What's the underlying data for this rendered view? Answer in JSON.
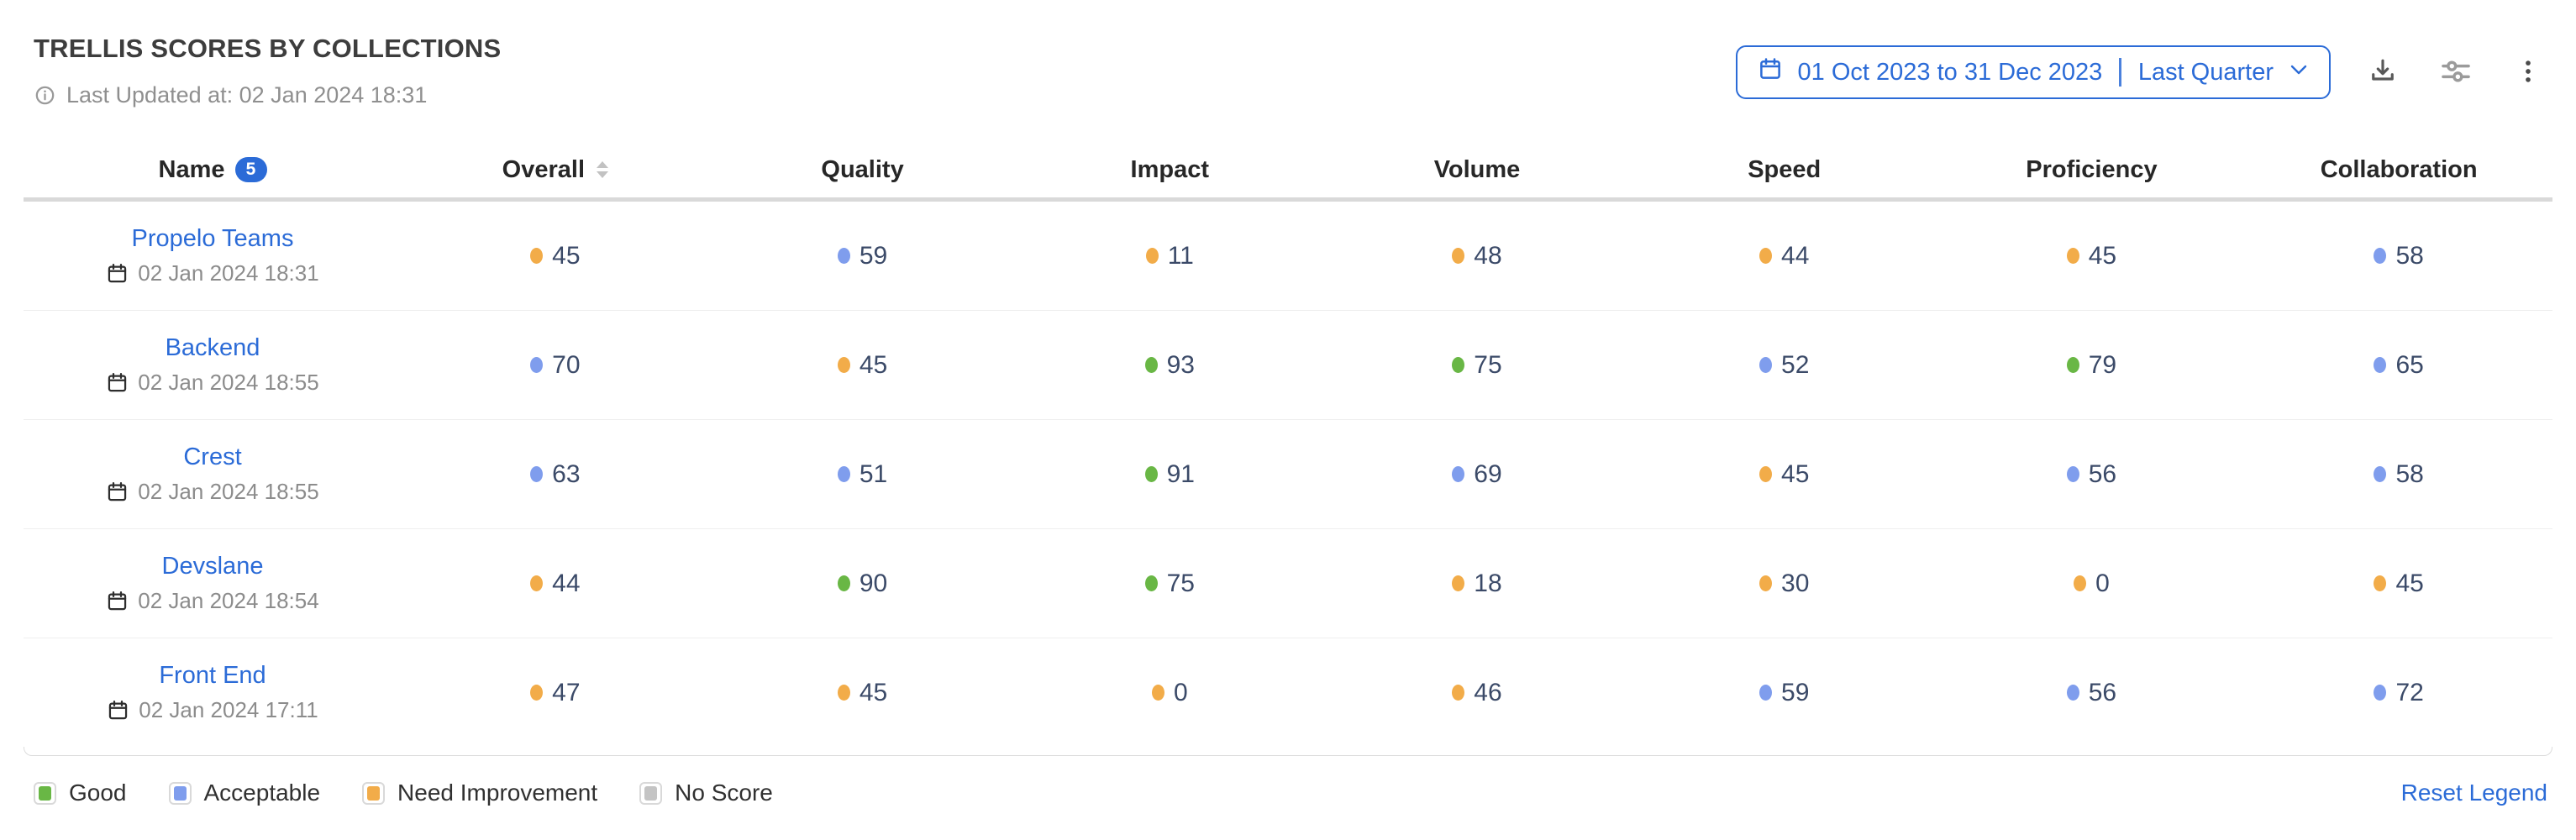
{
  "header": {
    "title": "TRELLIS SCORES BY COLLECTIONS",
    "last_updated": "Last Updated at: 02 Jan 2024 18:31",
    "date_picker": {
      "range": "01 Oct 2023 to 31 Dec 2023",
      "preset": "Last Quarter"
    }
  },
  "table": {
    "columns": [
      {
        "key": "name",
        "label": "Name",
        "badge": "5"
      },
      {
        "key": "overall",
        "label": "Overall",
        "sortable": true
      },
      {
        "key": "quality",
        "label": "Quality"
      },
      {
        "key": "impact",
        "label": "Impact"
      },
      {
        "key": "volume",
        "label": "Volume"
      },
      {
        "key": "speed",
        "label": "Speed"
      },
      {
        "key": "proficiency",
        "label": "Proficiency"
      },
      {
        "key": "collaboration",
        "label": "Collaboration"
      }
    ],
    "rows": [
      {
        "name": "Propelo Teams",
        "updated": "02 Jan 2024 18:31",
        "scores": [
          {
            "value": 45,
            "status": "need_improvement"
          },
          {
            "value": 59,
            "status": "acceptable"
          },
          {
            "value": 11,
            "status": "need_improvement"
          },
          {
            "value": 48,
            "status": "need_improvement"
          },
          {
            "value": 44,
            "status": "need_improvement"
          },
          {
            "value": 45,
            "status": "need_improvement"
          },
          {
            "value": 58,
            "status": "acceptable"
          }
        ]
      },
      {
        "name": "Backend",
        "updated": "02 Jan 2024 18:55",
        "scores": [
          {
            "value": 70,
            "status": "acceptable"
          },
          {
            "value": 45,
            "status": "need_improvement"
          },
          {
            "value": 93,
            "status": "good"
          },
          {
            "value": 75,
            "status": "good"
          },
          {
            "value": 52,
            "status": "acceptable"
          },
          {
            "value": 79,
            "status": "good"
          },
          {
            "value": 65,
            "status": "acceptable"
          }
        ]
      },
      {
        "name": "Crest",
        "updated": "02 Jan 2024 18:55",
        "scores": [
          {
            "value": 63,
            "status": "acceptable"
          },
          {
            "value": 51,
            "status": "acceptable"
          },
          {
            "value": 91,
            "status": "good"
          },
          {
            "value": 69,
            "status": "acceptable"
          },
          {
            "value": 45,
            "status": "need_improvement"
          },
          {
            "value": 56,
            "status": "acceptable"
          },
          {
            "value": 58,
            "status": "acceptable"
          }
        ]
      },
      {
        "name": "Devslane",
        "updated": "02 Jan 2024 18:54",
        "scores": [
          {
            "value": 44,
            "status": "need_improvement"
          },
          {
            "value": 90,
            "status": "good"
          },
          {
            "value": 75,
            "status": "good"
          },
          {
            "value": 18,
            "status": "need_improvement"
          },
          {
            "value": 30,
            "status": "need_improvement"
          },
          {
            "value": 0,
            "status": "need_improvement"
          },
          {
            "value": 45,
            "status": "need_improvement"
          }
        ]
      },
      {
        "name": "Front End",
        "updated": "02 Jan 2024 17:11",
        "scores": [
          {
            "value": 47,
            "status": "need_improvement"
          },
          {
            "value": 45,
            "status": "need_improvement"
          },
          {
            "value": 0,
            "status": "need_improvement"
          },
          {
            "value": 46,
            "status": "need_improvement"
          },
          {
            "value": 59,
            "status": "acceptable"
          },
          {
            "value": 56,
            "status": "acceptable"
          },
          {
            "value": 72,
            "status": "acceptable"
          }
        ]
      }
    ]
  },
  "legend": {
    "items": [
      {
        "label": "Good",
        "status": "good"
      },
      {
        "label": "Acceptable",
        "status": "acceptable"
      },
      {
        "label": "Need Improvement",
        "status": "need_improvement"
      },
      {
        "label": "No Score",
        "status": "no_score"
      }
    ],
    "reset_label": "Reset Legend"
  },
  "colors": {
    "good": "#69b745",
    "acceptable": "#7f9ded",
    "need_improvement": "#f2ac49",
    "no_score": "#c4c4c4",
    "accent": "#2b6bd7"
  }
}
